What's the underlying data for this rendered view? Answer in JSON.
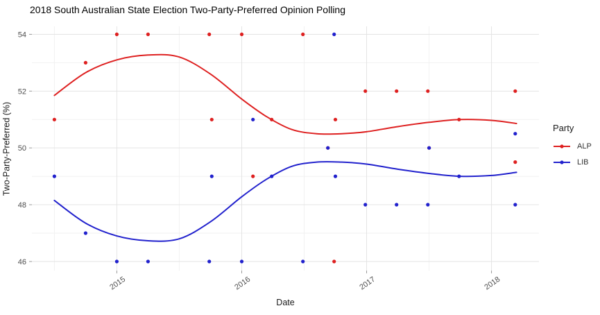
{
  "chart_data": {
    "type": "scatter",
    "title": "2018 South Australian State Election Two-Party-Preferred Opinion Polling",
    "xlabel": "Date",
    "ylabel": "Two-Party-Preferred (%)",
    "xlim": [
      2014.32,
      2018.38
    ],
    "ylim": [
      45.68,
      54.28
    ],
    "x_ticks": {
      "values": [
        2015,
        2016,
        2017,
        2018
      ],
      "labels": [
        "2015",
        "2016",
        "2017",
        "2018"
      ],
      "minor": [
        2014.5,
        2015.5,
        2016.5,
        2017.5
      ]
    },
    "y_ticks": {
      "values": [
        46,
        48,
        50,
        52,
        54
      ],
      "labels": [
        "46",
        "48",
        "50",
        "52",
        "54"
      ],
      "minor": [
        47,
        49,
        51,
        53
      ]
    },
    "grid": {
      "major_color": "#e4e4e4",
      "minor_color": "#f1f1f1",
      "tick_color": "#999999",
      "label_color": "#4d4d4d"
    },
    "legend": {
      "title": "Party",
      "position": "right"
    },
    "series": [
      {
        "name": "ALP",
        "color": "#de2020",
        "points": [
          [
            2014.5,
            51
          ],
          [
            2014.75,
            53
          ],
          [
            2015.0,
            54
          ],
          [
            2015.25,
            54
          ],
          [
            2015.74,
            54
          ],
          [
            2015.76,
            51
          ],
          [
            2016.0,
            54
          ],
          [
            2016.09,
            49
          ],
          [
            2016.24,
            51
          ],
          [
            2016.49,
            54
          ],
          [
            2016.69,
            50
          ],
          [
            2016.74,
            46
          ],
          [
            2016.75,
            51
          ],
          [
            2016.99,
            52
          ],
          [
            2017.24,
            52
          ],
          [
            2017.49,
            52
          ],
          [
            2017.5,
            50
          ],
          [
            2017.74,
            51
          ],
          [
            2018.19,
            52
          ],
          [
            2018.19,
            49.5
          ]
        ],
        "trend": [
          [
            2014.5,
            51.85
          ],
          [
            2014.75,
            52.65
          ],
          [
            2015.0,
            53.1
          ],
          [
            2015.25,
            53.27
          ],
          [
            2015.5,
            53.2
          ],
          [
            2015.75,
            52.6
          ],
          [
            2016.0,
            51.72
          ],
          [
            2016.2,
            51.1
          ],
          [
            2016.4,
            50.65
          ],
          [
            2016.6,
            50.5
          ],
          [
            2016.8,
            50.5
          ],
          [
            2017.0,
            50.57
          ],
          [
            2017.25,
            50.75
          ],
          [
            2017.5,
            50.9
          ],
          [
            2017.75,
            51.0
          ],
          [
            2018.0,
            50.97
          ],
          [
            2018.2,
            50.86
          ]
        ]
      },
      {
        "name": "LIB",
        "color": "#2121cd",
        "points": [
          [
            2014.5,
            49
          ],
          [
            2014.75,
            47
          ],
          [
            2015.0,
            46
          ],
          [
            2015.25,
            46
          ],
          [
            2015.74,
            46
          ],
          [
            2015.76,
            49
          ],
          [
            2016.0,
            46
          ],
          [
            2016.09,
            51
          ],
          [
            2016.24,
            49
          ],
          [
            2016.49,
            46
          ],
          [
            2016.69,
            50
          ],
          [
            2016.74,
            54
          ],
          [
            2016.75,
            49
          ],
          [
            2016.99,
            48
          ],
          [
            2017.24,
            48
          ],
          [
            2017.49,
            48
          ],
          [
            2017.5,
            50
          ],
          [
            2017.74,
            49
          ],
          [
            2018.19,
            48
          ],
          [
            2018.19,
            50.5
          ]
        ],
        "trend": [
          [
            2014.5,
            48.15
          ],
          [
            2014.75,
            47.35
          ],
          [
            2015.0,
            46.9
          ],
          [
            2015.25,
            46.73
          ],
          [
            2015.5,
            46.8
          ],
          [
            2015.75,
            47.4
          ],
          [
            2016.0,
            48.28
          ],
          [
            2016.2,
            48.9
          ],
          [
            2016.4,
            49.35
          ],
          [
            2016.6,
            49.5
          ],
          [
            2016.8,
            49.5
          ],
          [
            2017.0,
            49.43
          ],
          [
            2017.25,
            49.25
          ],
          [
            2017.5,
            49.1
          ],
          [
            2017.75,
            49.0
          ],
          [
            2018.0,
            49.03
          ],
          [
            2018.2,
            49.14
          ]
        ]
      }
    ]
  }
}
